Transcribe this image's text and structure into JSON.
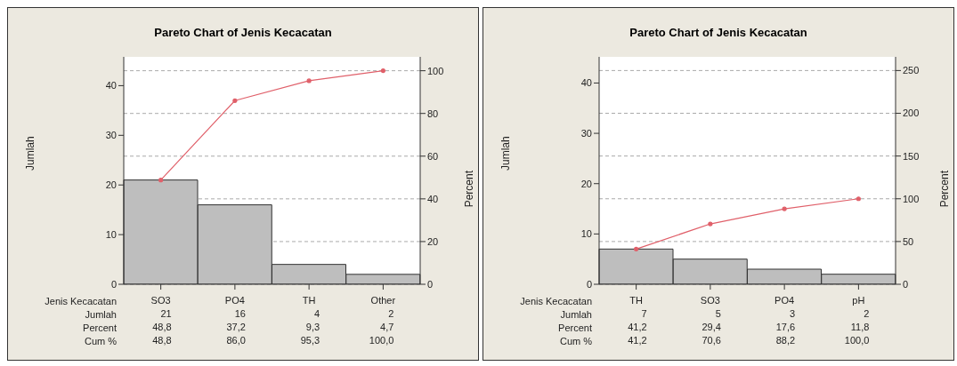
{
  "chart_data": [
    {
      "type": "bar",
      "title": "Pareto Chart of Jenis Kecacatan",
      "xlabel": "Jenis Kecacatan",
      "ylabel": "Jumlah",
      "y2label": "Percent",
      "categories": [
        "SO3",
        "PO4",
        "TH",
        "Other"
      ],
      "series": [
        {
          "color": "#bebebe",
          "values": [
            21,
            16,
            4,
            2
          ],
          "value_labels": [
            "21",
            "16",
            "4",
            "2"
          ]
        },
        {
          "type": "line",
          "axis": "y2",
          "color": "#e0606a",
          "values": [
            48.8,
            86.0,
            95.3,
            100.0
          ],
          "value_labels": [
            "48,8",
            "86,0",
            "95,3",
            "100,0"
          ]
        }
      ],
      "annotations": [
        "Jumlah",
        "Percent",
        "48,8",
        "37,2",
        "9,3",
        "4,7",
        "Cum %"
      ],
      "ylim": [
        0,
        45.8
      ],
      "yticks": [
        0,
        10,
        20,
        30,
        40
      ],
      "y2lim": [
        0,
        106.5
      ],
      "y2ticks": [
        0,
        20,
        40,
        60,
        80,
        100
      ],
      "grid": "y2",
      "marker": "circle"
    },
    {
      "type": "bar",
      "title": "Pareto Chart of Jenis Kecacatan",
      "xlabel": "Jenis Kecacatan",
      "ylabel": "Jumlah",
      "y2label": "Percent",
      "categories": [
        "TH",
        "SO3",
        "PO4",
        "pH"
      ],
      "series": [
        {
          "color": "#bebebe",
          "values": [
            7,
            5,
            3,
            2
          ],
          "value_labels": [
            "7",
            "5",
            "3",
            "2"
          ]
        },
        {
          "type": "line",
          "axis": "y2",
          "color": "#e0606a",
          "values": [
            41.2,
            70.6,
            88.2,
            100.0
          ],
          "value_labels": [
            "41,2",
            "70,6",
            "88,2",
            "100,0"
          ]
        }
      ],
      "annotations": [
        "Jumlah",
        "Percent",
        "41,2",
        "29,4",
        "17,6",
        "11,8",
        "Cum %"
      ],
      "ylim": [
        0,
        45.2
      ],
      "yticks": [
        0,
        10,
        20,
        30,
        40
      ],
      "y2lim": [
        0,
        266
      ],
      "y2ticks": [
        0,
        50,
        100,
        150,
        200,
        250
      ],
      "grid": "y2",
      "marker": "circle"
    }
  ]
}
